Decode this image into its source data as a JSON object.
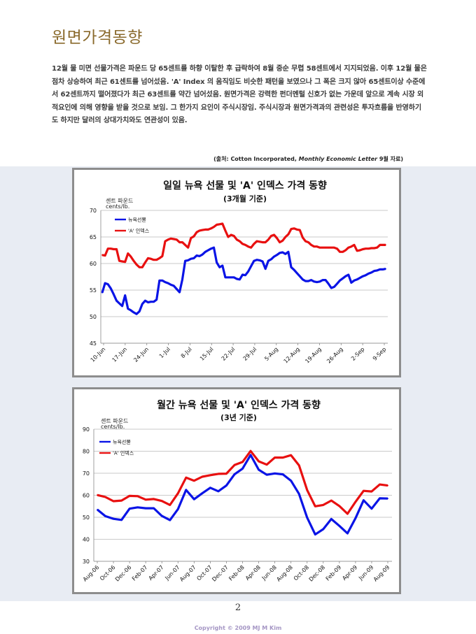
{
  "document": {
    "title": "원면가격동향",
    "paragraph": "12월 물 미면 선물가격은 파운드 당 65센트를 하향 이탈한 후 급락하여 8월 중순 무렵 58센트에서 지지되었음. 이후 12월 물은 점차 상승하여 최근 61센트를 넘어섰음. 'A' Index 의 움직임도 비슷한 패턴을 보였으나 그 폭은 크지 않아 65센트이상 수준에서 62센트까지 떨어졌다가 최근 63센트를 약간 넘어섰음. 원면가격은 강력한 펀더멘털 신호가 없는 가운데 앞으로 계속 시장 외적요인에 의해 영향을 받을 것으로 보임. 그 한가지 요인이 주식시장임. 주식시장과 원면가격과의 관련성은 투자흐름을 반영하기도 하지만 달러의 상대가치와도 연관성이 있음.",
    "source_prefix": "(출처: Cotton Incorporated, ",
    "source_italic": "Monthly Economic Letter",
    "source_suffix": " 9월 자료)",
    "page_number": "2",
    "copyright": "Copyright © 2009 MJ M Kim"
  },
  "chart_data": [
    {
      "type": "line",
      "title": "일일 뉴욕 선물 및 'A' 인덱스 가격 동향",
      "subtitle": "(3개월 기준)",
      "unit_line1": "센트   파운드",
      "unit_line2": "cents/lb.",
      "ylim": [
        45,
        70
      ],
      "yticks": [
        45,
        50,
        55,
        60,
        65,
        70
      ],
      "grid": true,
      "legend_position": "top-left",
      "x_tick_labels": [
        "10-Jun",
        "17-Jun",
        "24-Jun",
        "1-Jul",
        "8-Jul",
        "15-Jul",
        "22-Jul",
        "29-Jul",
        "5-Aug",
        "12-Aug",
        "19-Aug",
        "26-Aug",
        "2-Sep",
        "9-Sep"
      ],
      "series": [
        {
          "name": "뉴욕선물",
          "color": "#0a14e6",
          "values": [
            54.5,
            56.3,
            56.1,
            55.3,
            54.2,
            53.0,
            52.5,
            52.0,
            54.0,
            51.5,
            51.2,
            50.8,
            50.5,
            51.0,
            52.4,
            53.0,
            52.7,
            52.8,
            52.8,
            53.2,
            56.8,
            56.8,
            56.5,
            56.3,
            56.0,
            55.8,
            55.2,
            54.6,
            57.0,
            60.5,
            60.6,
            60.9,
            61.0,
            61.5,
            61.4,
            61.7,
            62.2,
            62.5,
            62.8,
            63.0,
            60.2,
            59.3,
            59.6,
            57.4,
            57.4,
            57.4,
            57.4,
            57.1,
            57.0,
            57.9,
            57.8,
            58.5,
            59.5,
            60.5,
            60.7,
            60.6,
            60.4,
            59.0,
            60.5,
            60.8,
            61.3,
            61.6,
            62.0,
            62.1,
            61.8,
            62.2,
            59.3,
            58.8,
            58.2,
            57.6,
            57.0,
            56.7,
            56.7,
            56.9,
            56.6,
            56.5,
            56.6,
            56.9,
            56.9,
            56.2,
            55.4,
            55.6,
            56.2,
            56.8,
            57.2,
            57.6,
            57.9,
            56.4,
            56.8,
            57.0,
            57.3,
            57.6,
            57.8,
            58.1,
            58.3,
            58.6,
            58.7,
            58.9,
            58.9,
            59.0
          ]
        },
        {
          "name": "'A' 인덱스",
          "color": "#e81010",
          "values": [
            61.6,
            61.5,
            62.8,
            62.8,
            62.7,
            62.7,
            60.5,
            60.4,
            60.3,
            61.9,
            61.3,
            60.5,
            59.8,
            59.3,
            59.3,
            60.2,
            61.0,
            60.9,
            60.7,
            60.7,
            61.0,
            61.4,
            64.2,
            64.5,
            64.7,
            64.6,
            64.5,
            64.0,
            64.0,
            63.5,
            63.0,
            64.8,
            65.1,
            65.9,
            66.2,
            66.3,
            66.4,
            66.4,
            66.6,
            66.9,
            67.3,
            67.4,
            67.5,
            66.2,
            65.0,
            65.4,
            65.2,
            64.5,
            64.2,
            63.7,
            63.5,
            63.2,
            63.0,
            63.7,
            64.2,
            64.1,
            64.0,
            64.0,
            64.5,
            65.2,
            65.4,
            64.8,
            64.0,
            64.3,
            65.0,
            65.5,
            66.5,
            66.6,
            66.4,
            66.3,
            64.9,
            64.2,
            64.0,
            63.5,
            63.2,
            63.2,
            63.0,
            63.0,
            63.0,
            63.0,
            63.0,
            63.0,
            62.8,
            62.2,
            62.2,
            62.5,
            63.0,
            63.2,
            63.5,
            62.4,
            62.5,
            62.7,
            62.8,
            62.8,
            62.9,
            62.9,
            63.0,
            63.5,
            63.5,
            63.5
          ]
        }
      ]
    },
    {
      "type": "line",
      "title": "월간 뉴욕 선물 및 'A' 인덱스 가격 동향",
      "subtitle": "(3년 기준)",
      "unit_line1": "센트   파운드",
      "unit_line2": "cents/lb.",
      "ylim": [
        30,
        90
      ],
      "yticks": [
        30,
        40,
        50,
        60,
        70,
        80,
        90
      ],
      "grid": true,
      "legend_position": "top-left",
      "x_tick_labels": [
        "Aug-06",
        "Oct-06",
        "Dec-06",
        "Feb-07",
        "Apr-07",
        "Jun-07",
        "Aug-07",
        "Oct-07",
        "Dec-07",
        "Feb-08",
        "Apr-08",
        "Jun-08",
        "Aug-08",
        "Oct-08",
        "Dec-08",
        "Feb-09",
        "Apr-09",
        "Jun-09",
        "Aug-09"
      ],
      "series": [
        {
          "name": "뉴욕선물",
          "color": "#0a14e6",
          "values": [
            53.5,
            50.5,
            49.3,
            48.8,
            53.9,
            54.5,
            54.1,
            54.1,
            50.6,
            48.7,
            53.7,
            62.4,
            58.2,
            60.9,
            63.4,
            61.8,
            64.4,
            69.5,
            72.1,
            78.3,
            71.6,
            69.3,
            69.9,
            69.5,
            66.6,
            60.6,
            49.9,
            42.2,
            44.6,
            49.2,
            46.1,
            42.7,
            49.6,
            57.7,
            53.9,
            58.6,
            58.5
          ]
        },
        {
          "name": "'A' 인덱스",
          "color": "#e81010",
          "values": [
            60.1,
            59.2,
            57.3,
            57.6,
            59.7,
            59.6,
            58.0,
            58.3,
            57.4,
            55.6,
            60.9,
            68.0,
            66.6,
            68.4,
            69.1,
            69.7,
            69.8,
            73.7,
            75.1,
            80.1,
            75.4,
            73.9,
            77.1,
            77.1,
            78.2,
            73.6,
            62.4,
            55.0,
            55.6,
            57.6,
            55.1,
            51.6,
            57.0,
            62.0,
            61.7,
            64.9,
            64.4
          ]
        }
      ]
    }
  ]
}
